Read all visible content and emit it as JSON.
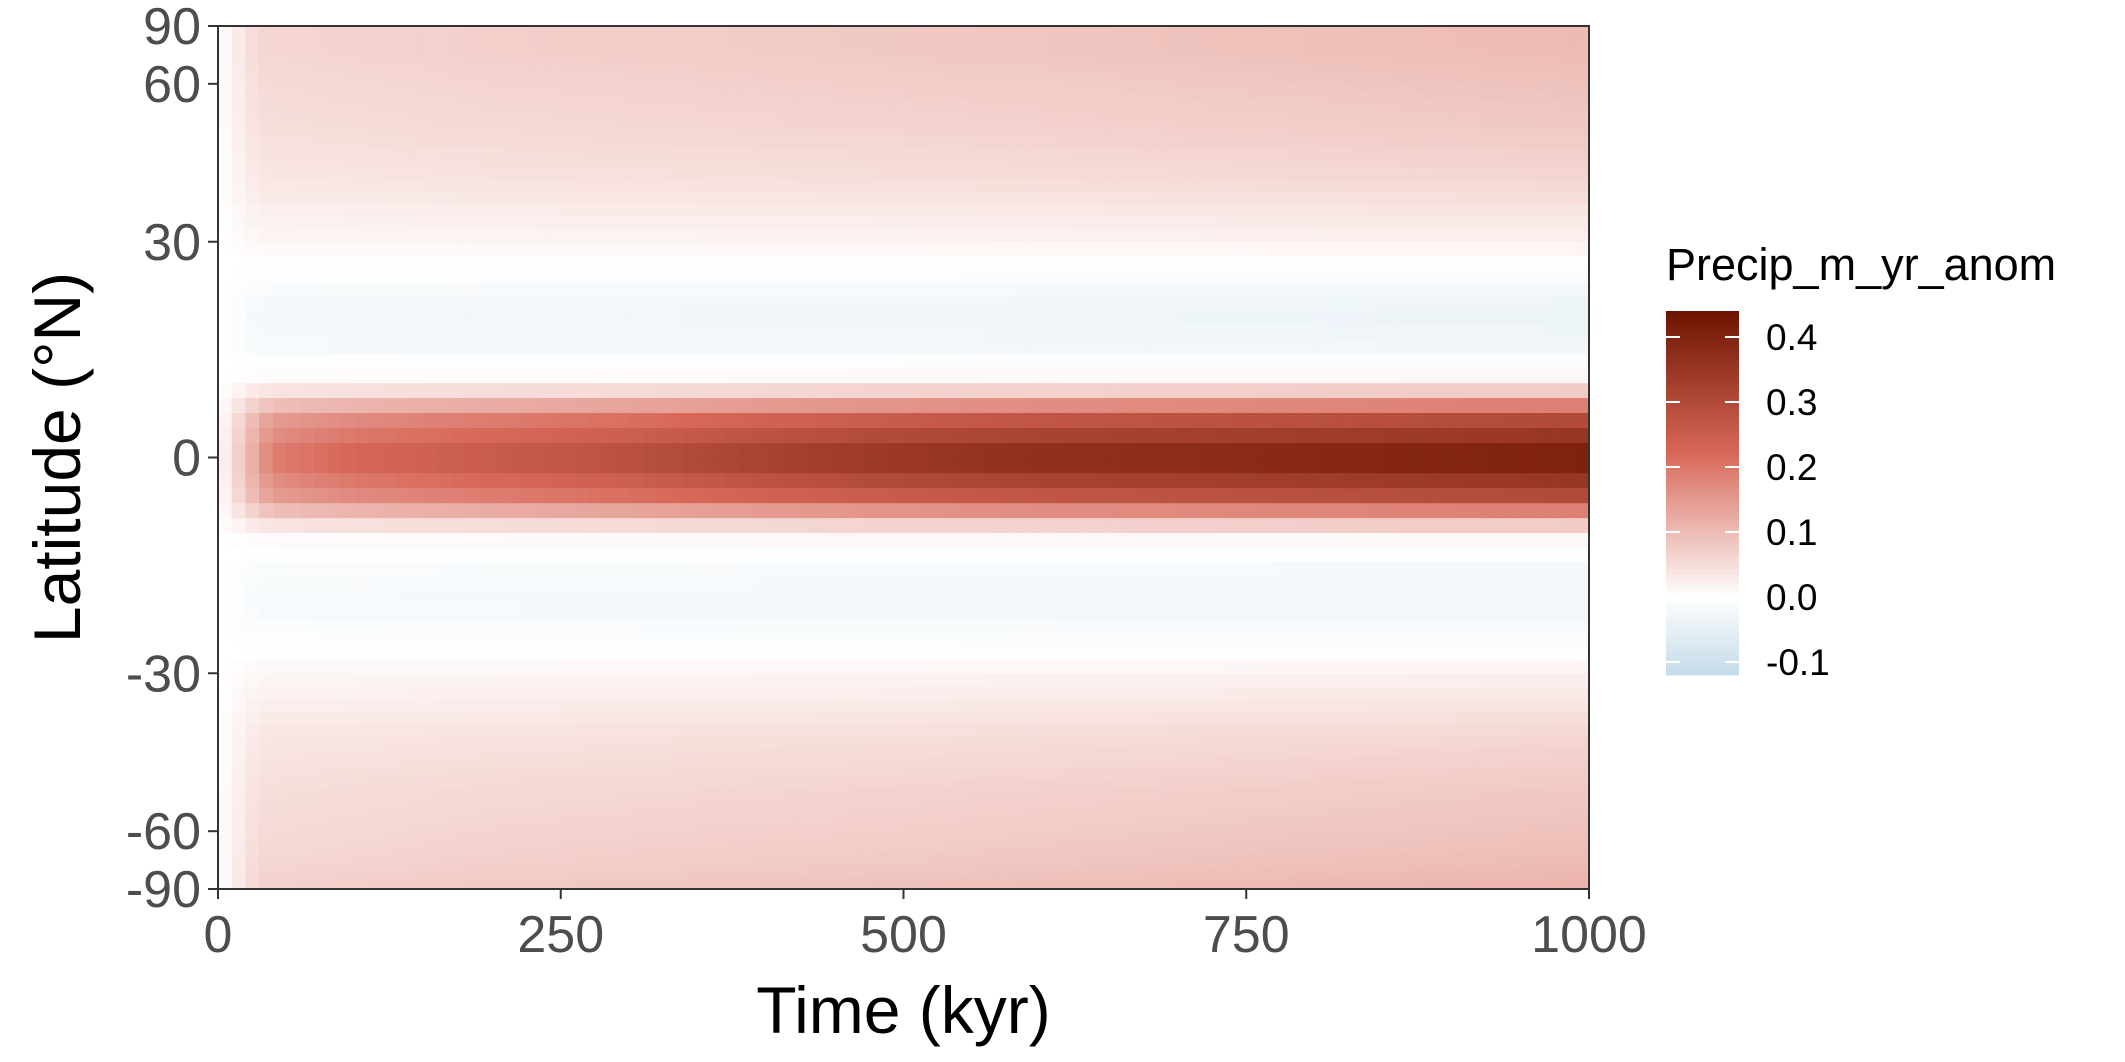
{
  "chart_data": {
    "type": "heatmap",
    "title": "",
    "xlabel": "Time (kyr)",
    "ylabel": "Latitude (°N)",
    "x_ticks": [
      "0",
      "250",
      "500",
      "750",
      "1000"
    ],
    "x_tick_values": [
      0,
      250,
      500,
      750,
      1000
    ],
    "y_ticks": [
      "90",
      "60",
      "30",
      "0",
      "-30",
      "-60",
      "-90"
    ],
    "y_tick_values": [
      90,
      60,
      30,
      0,
      -30,
      -60,
      -90
    ],
    "y_scale": "sine of latitude",
    "xlim": [
      0,
      1000
    ],
    "ylim": [
      -90,
      90
    ],
    "grid": false,
    "legend": {
      "title": "Precip_m_yr_anom",
      "placement": "right",
      "ticks": [
        "0.4",
        "0.3",
        "0.2",
        "0.1",
        "0.0",
        "-0.1"
      ],
      "tick_values": [
        0.4,
        0.3,
        0.2,
        0.1,
        0.0,
        -0.1
      ],
      "range": [
        -0.12,
        0.44
      ],
      "colors": {
        "negative": "#c4dbe9",
        "zero": "#ffffff",
        "positive_mid": "#d8695a",
        "positive_high": "#6d1300"
      }
    },
    "x_step": 10,
    "latitudes": [
      -90,
      -80,
      -70,
      -60,
      -50,
      -40,
      -30,
      -25,
      -20,
      -15,
      -10,
      -5,
      0,
      5,
      10,
      15,
      20,
      25,
      30,
      40,
      50,
      60,
      70,
      80,
      90
    ],
    "profile_at_1000kyr": [
      0.11,
      0.11,
      0.1,
      0.09,
      0.08,
      0.06,
      0.02,
      -0.01,
      -0.03,
      -0.02,
      0.02,
      0.3,
      0.43,
      0.3,
      0.02,
      -0.03,
      -0.04,
      -0.01,
      0.02,
      0.06,
      0.08,
      0.09,
      0.1,
      0.1,
      0.1
    ],
    "equator_amplitude": [
      {
        "x": 0,
        "value": 0.0
      },
      {
        "x": 40,
        "value": 0.2
      },
      {
        "x": 100,
        "value": 0.24
      },
      {
        "x": 200,
        "value": 0.27
      },
      {
        "x": 300,
        "value": 0.3
      },
      {
        "x": 400,
        "value": 0.34
      },
      {
        "x": 500,
        "value": 0.37
      },
      {
        "x": 600,
        "value": 0.39
      },
      {
        "x": 700,
        "value": 0.4
      },
      {
        "x": 800,
        "value": 0.41
      },
      {
        "x": 900,
        "value": 0.42
      },
      {
        "x": 1000,
        "value": 0.43
      }
    ],
    "extratropics_amplitude": [
      {
        "x": 0,
        "value": 0.0
      },
      {
        "x": 30,
        "value": 0.06
      },
      {
        "x": 200,
        "value": 0.07
      },
      {
        "x": 500,
        "value": 0.08
      },
      {
        "x": 1000,
        "value": 0.1
      }
    ]
  }
}
